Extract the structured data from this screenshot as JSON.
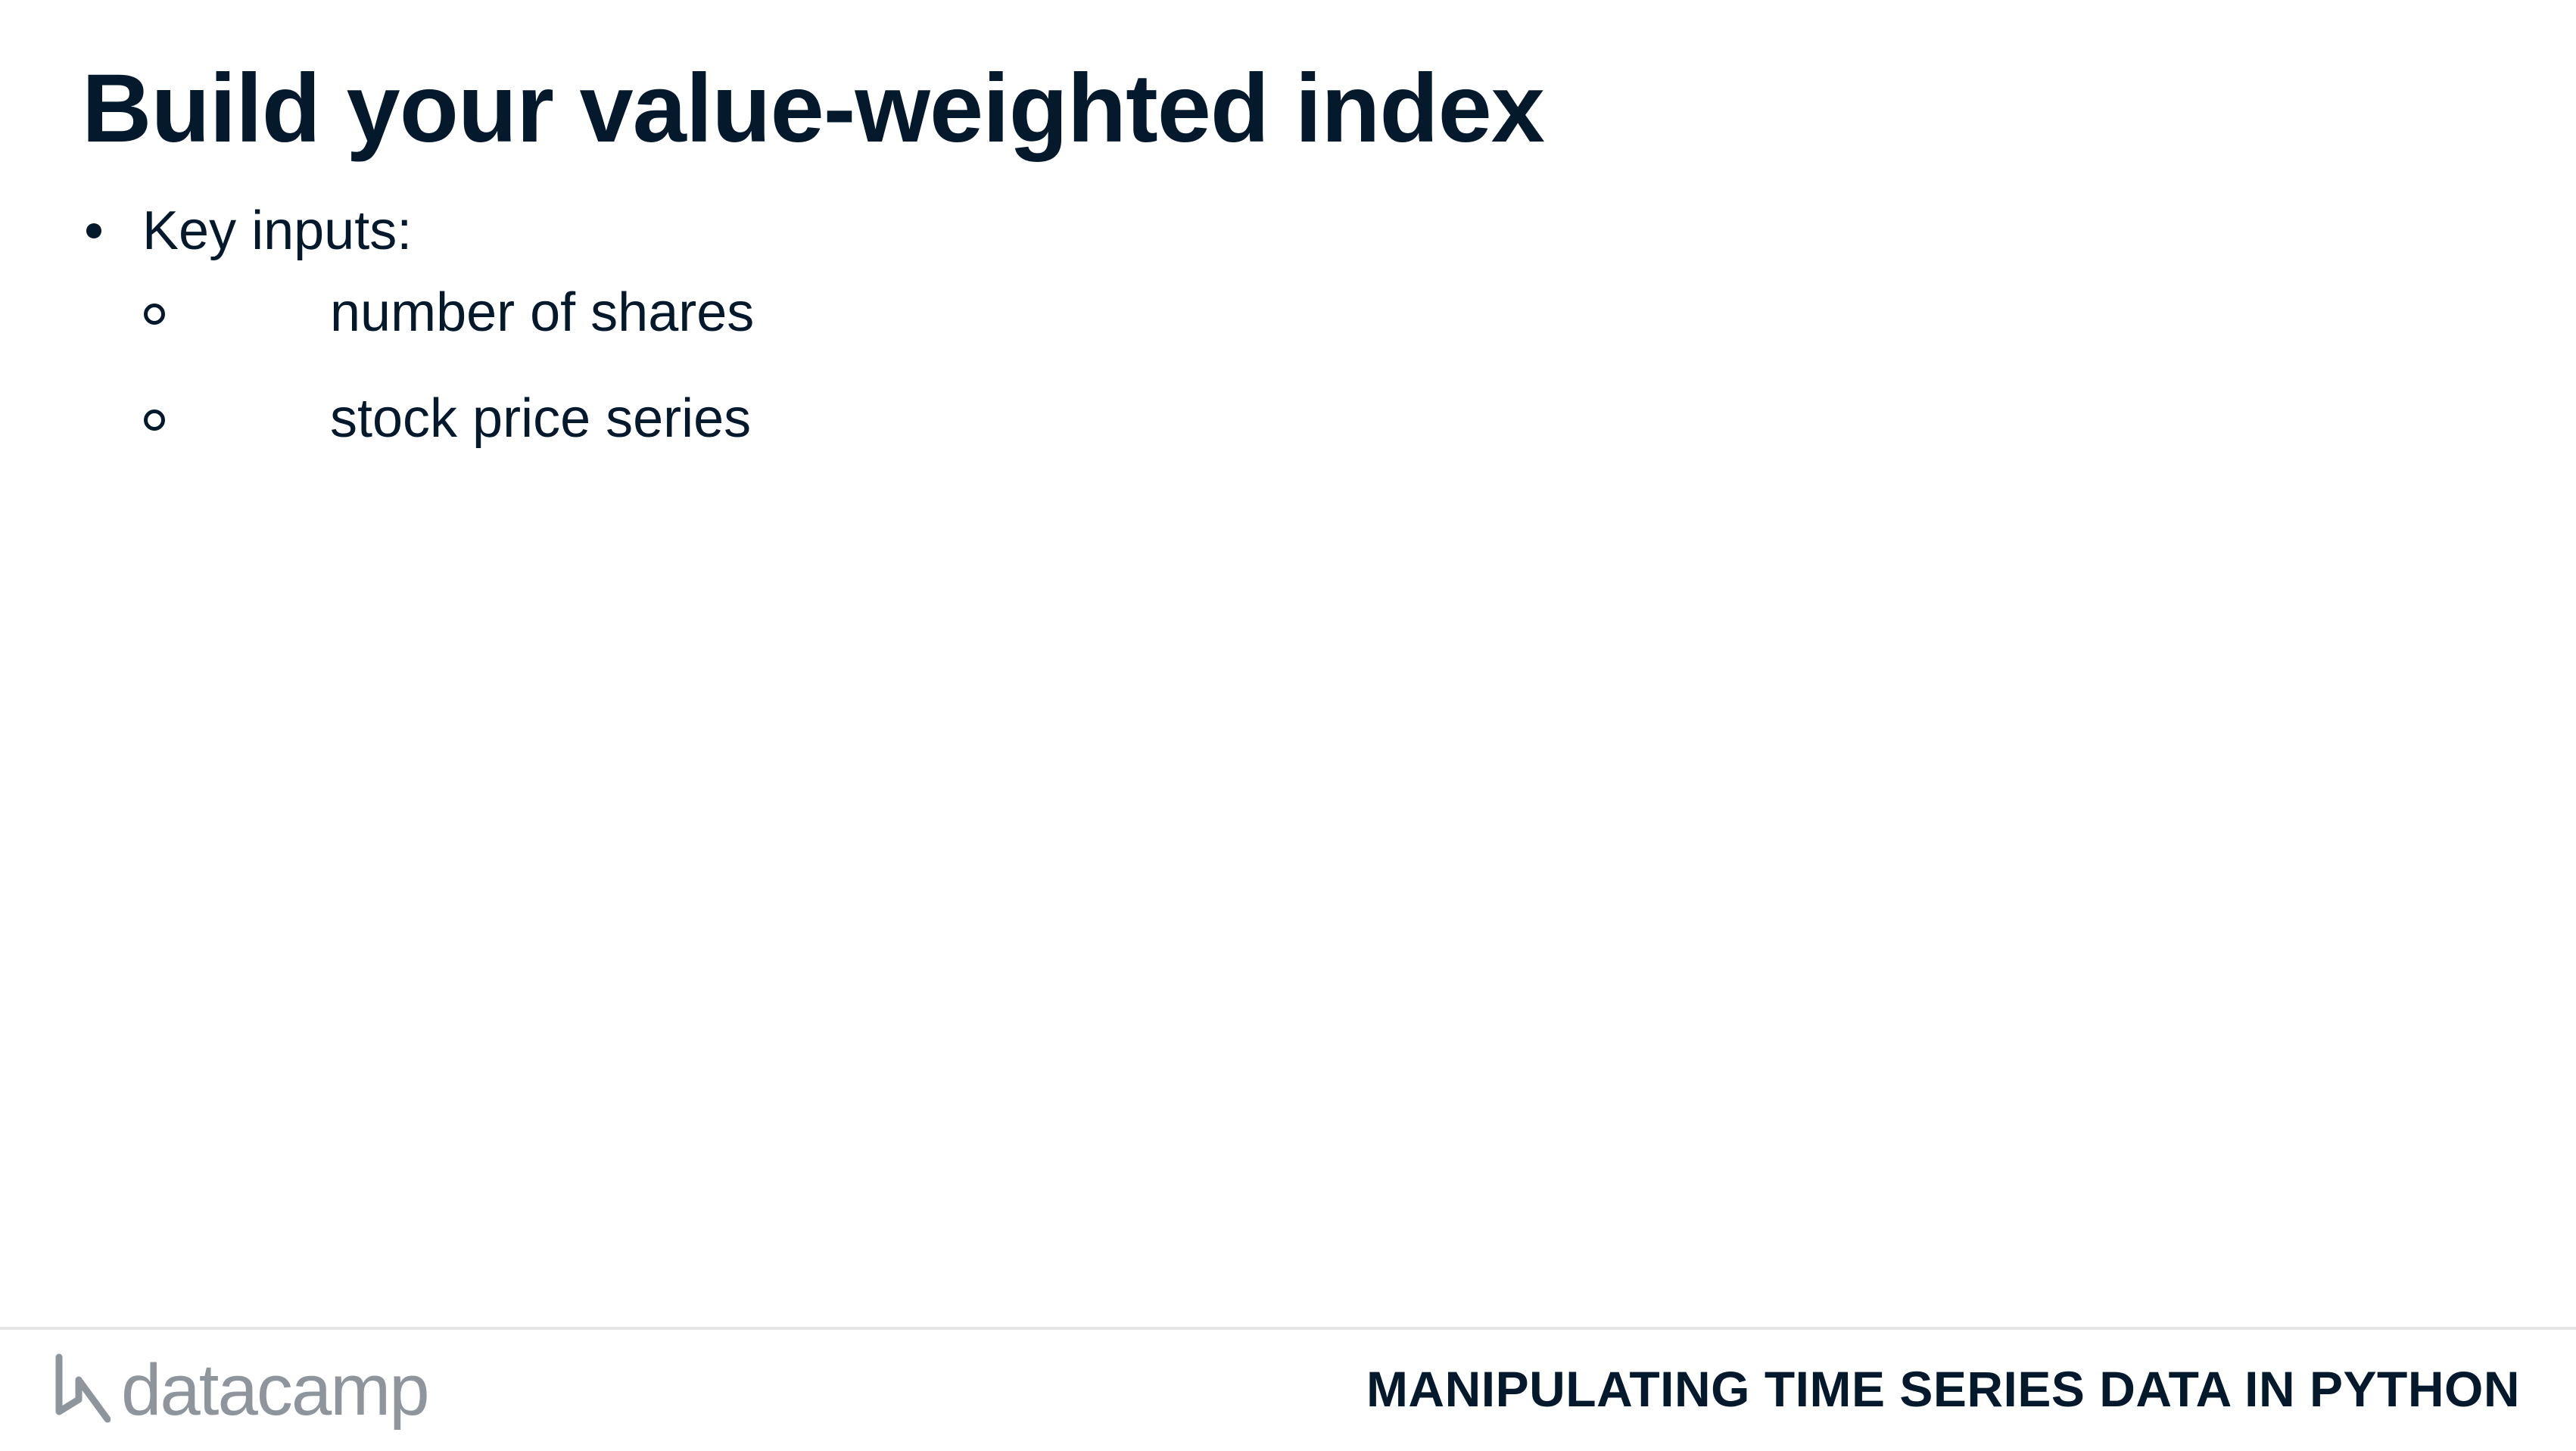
{
  "slide": {
    "title": "Build your value-weighted index",
    "bullets": [
      {
        "text": "Key inputs:",
        "sub_items": [
          "number of shares",
          "stock price series"
        ]
      }
    ]
  },
  "footer": {
    "logo_text": "datacamp",
    "course_name": "MANIPULATING TIME SERIES DATA IN PYTHON"
  },
  "colors": {
    "text": "#05192d",
    "logo": "#8e959c",
    "rule": "#e5e5e5",
    "background": "#ffffff"
  },
  "icons": {
    "logo_mark": "datacamp-logo-icon",
    "bullet": "filled-circle-bullet-icon",
    "sub_bullet": "hollow-circle-bullet-icon"
  }
}
